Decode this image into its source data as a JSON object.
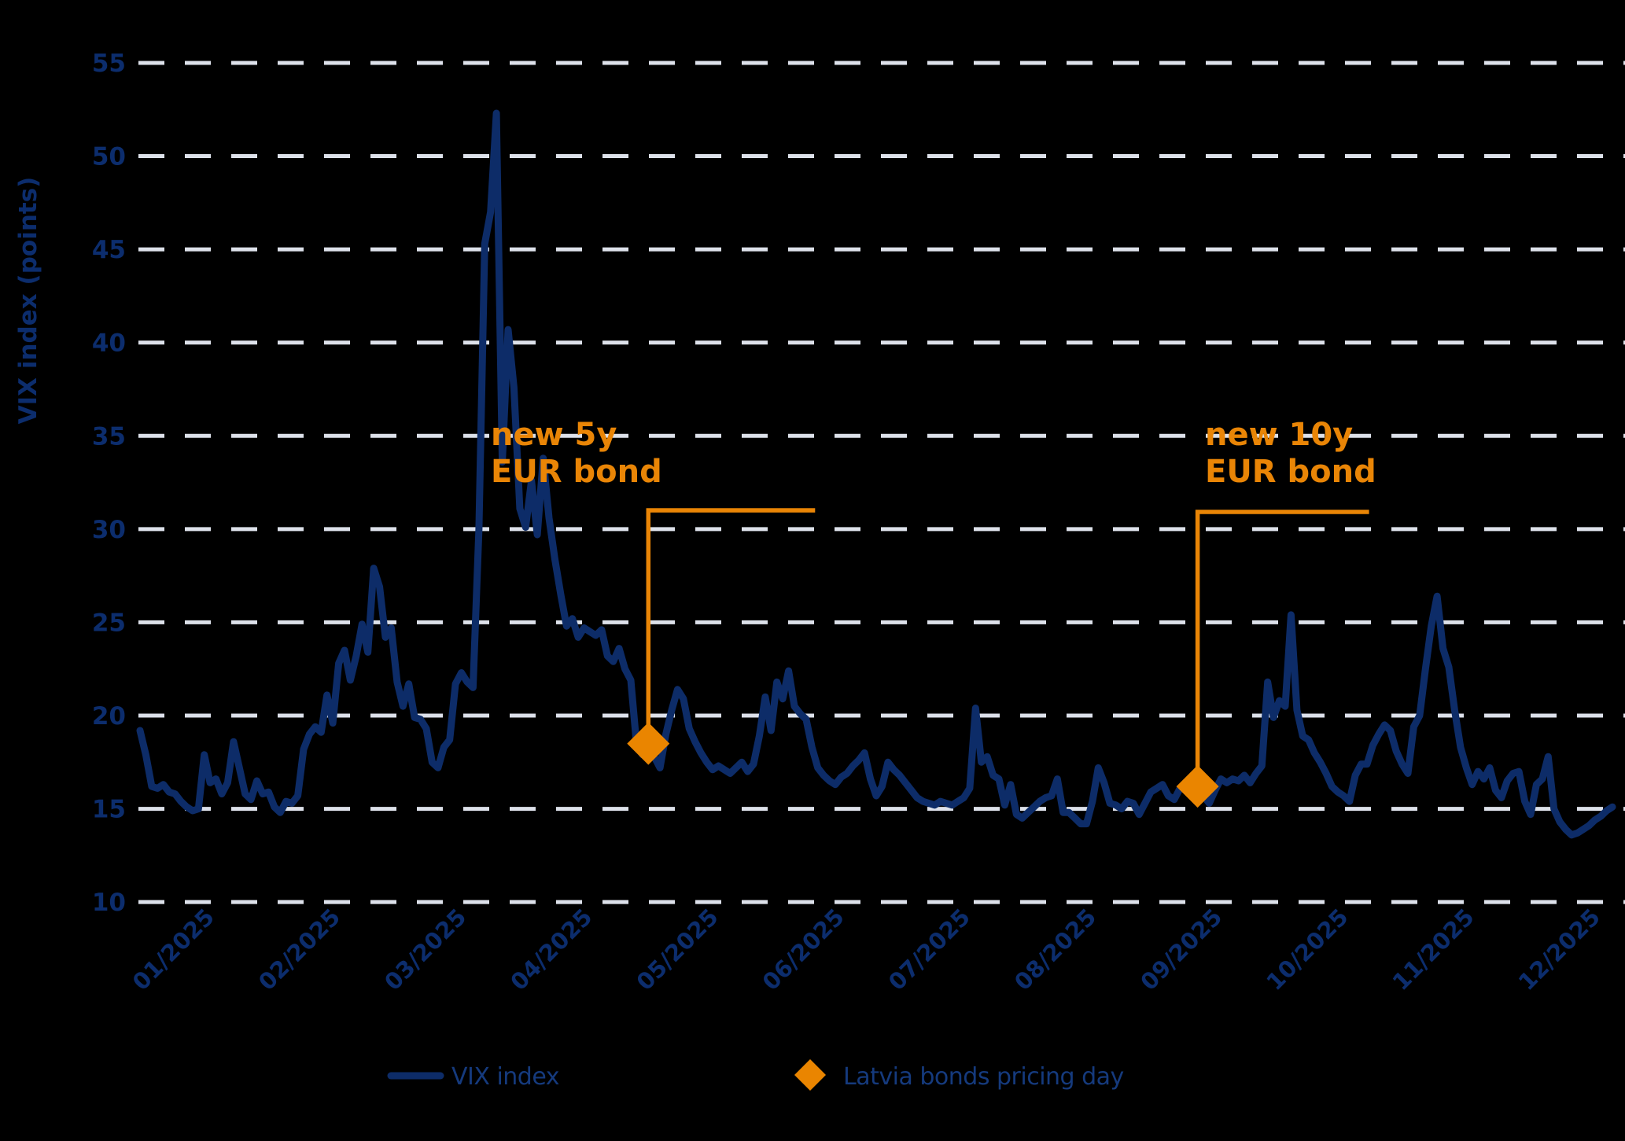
{
  "chart_data": {
    "type": "line",
    "title": "",
    "xlabel": "",
    "ylabel": "VIX index (points)",
    "ylim": [
      10,
      55
    ],
    "grid": "horizontal-dashed",
    "y_ticks": [
      55,
      50,
      45,
      40,
      35,
      30,
      25,
      20,
      15,
      10
    ],
    "x_tick_labels": [
      "01/2025",
      "02/2025",
      "03/2025",
      "04/2025",
      "05/2025",
      "06/2025",
      "07/2025",
      "08/2025",
      "09/2025",
      "10/2025",
      "11/2025",
      "12/2025"
    ],
    "legend": [
      {
        "label": "VIX index",
        "marker": "line"
      },
      {
        "label": "Latvia bonds pricing day",
        "marker": "diamond"
      }
    ],
    "series": [
      {
        "name": "VIX index",
        "values": [
          19.2,
          17.9,
          16.2,
          16.1,
          16.3,
          15.9,
          15.8,
          15.4,
          15.1,
          14.9,
          15.0,
          17.9,
          16.4,
          16.6,
          15.8,
          16.4,
          18.6,
          17.2,
          15.8,
          15.5,
          16.5,
          15.8,
          15.9,
          15.1,
          14.8,
          15.4,
          15.3,
          15.7,
          18.2,
          19.0,
          19.4,
          19.1,
          21.1,
          19.6,
          22.8,
          23.5,
          21.9,
          23.2,
          24.9,
          23.4,
          27.9,
          26.9,
          24.2,
          24.7,
          21.8,
          20.5,
          21.7,
          19.9,
          19.8,
          19.3,
          17.5,
          17.2,
          18.3,
          18.7,
          21.7,
          22.3,
          21.8,
          21.5,
          30.0,
          45.3,
          47.0,
          52.3,
          33.6,
          40.7,
          37.6,
          31.1,
          30.1,
          32.6,
          29.7,
          33.8,
          30.6,
          28.4,
          26.5,
          24.8,
          25.2,
          24.2,
          24.7,
          24.5,
          24.3,
          24.6,
          23.2,
          22.9,
          23.6,
          22.5,
          21.9,
          18.4,
          17.9,
          18.5,
          17.8,
          17.2,
          19.0,
          20.3,
          21.4,
          20.9,
          19.3,
          18.6,
          18.0,
          17.5,
          17.1,
          17.3,
          17.1,
          16.9,
          17.2,
          17.5,
          17.0,
          17.4,
          18.9,
          21.0,
          19.2,
          21.8,
          20.9,
          22.4,
          20.5,
          20.1,
          19.8,
          18.3,
          17.2,
          16.8,
          16.5,
          16.3,
          16.7,
          16.9,
          17.3,
          17.6,
          18.0,
          16.6,
          15.7,
          16.2,
          17.5,
          17.1,
          16.8,
          16.4,
          16.0,
          15.6,
          15.4,
          15.3,
          15.2,
          15.4,
          15.3,
          15.2,
          15.4,
          15.6,
          16.1,
          20.4,
          17.5,
          17.8,
          16.8,
          16.6,
          15.2,
          16.3,
          14.7,
          14.5,
          14.8,
          15.1,
          15.4,
          15.6,
          15.7,
          16.6,
          14.8,
          14.8,
          14.5,
          14.2,
          14.2,
          15.4,
          17.2,
          16.4,
          15.3,
          15.2,
          15.0,
          15.4,
          15.3,
          14.7,
          15.3,
          15.9,
          16.1,
          16.3,
          15.7,
          15.5,
          16.1,
          16.4,
          16.5,
          16.2,
          15.7,
          15.3,
          16.0,
          16.6,
          16.4,
          16.6,
          16.5,
          16.8,
          16.4,
          16.9,
          17.3,
          21.8,
          19.9,
          20.8,
          20.5,
          25.4,
          20.3,
          18.9,
          18.7,
          18.0,
          17.5,
          16.9,
          16.2,
          15.9,
          15.7,
          15.4,
          16.8,
          17.4,
          17.4,
          18.4,
          19.0,
          19.5,
          19.2,
          18.1,
          17.4,
          16.9,
          19.4,
          20.0,
          22.5,
          24.8,
          26.4,
          23.6,
          22.6,
          20.3,
          18.3,
          17.2,
          16.3,
          17.0,
          16.6,
          17.2,
          16.0,
          15.6,
          16.5,
          16.9,
          17.0,
          15.4,
          14.7,
          16.3,
          16.6,
          17.8,
          15.0,
          14.3,
          13.9,
          13.6,
          13.7,
          13.9,
          14.1,
          14.4,
          14.6,
          14.9,
          15.1
        ]
      }
    ],
    "markers": [
      {
        "name": "pricing-day-5y",
        "index": 87,
        "value": 18.5,
        "label_line1": "new 5y",
        "label_line2": "EUR bond"
      },
      {
        "name": "pricing-day-10y",
        "index": 181,
        "value": 16.2,
        "label_line1": "new 10y",
        "label_line2": "EUR bond"
      }
    ]
  },
  "legend": {
    "vix_label": "VIX index",
    "pricing_label": "Latvia bonds pricing day"
  },
  "axis": {
    "ylabel": "VIX index (points)"
  },
  "annotations": {
    "a5y_line1": "new 5y",
    "a5y_line2": "EUR bond",
    "a10y_line1": "new 10y",
    "a10y_line2": "EUR bond"
  },
  "colors": {
    "background": "#000000",
    "line": "#0d2c68",
    "grid": "#dde1ea",
    "tick_text": "#0c2d6d",
    "legend_text": "#153a7d",
    "orange": "#e98506",
    "diamond": "#ea8500"
  }
}
